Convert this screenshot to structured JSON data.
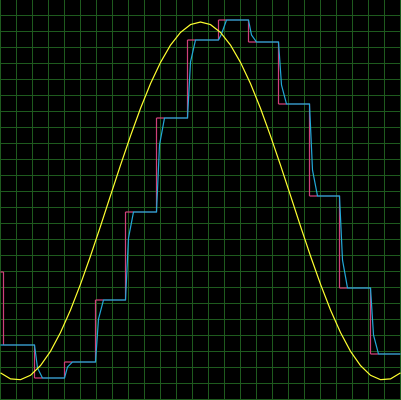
{
  "chart_data": {
    "type": "line",
    "background": "#000000",
    "grid": true,
    "grid_color": "#1e5a1e",
    "xlim": [
      0,
      400
    ],
    "ylim": [
      0,
      400
    ],
    "xticks": [
      0,
      16,
      32,
      48,
      64,
      80,
      96,
      112,
      128,
      144,
      160,
      176,
      192,
      208,
      224,
      240,
      256,
      272,
      288,
      304,
      320,
      336,
      352,
      368,
      384,
      400
    ],
    "yticks": [
      0,
      16,
      32,
      48,
      64,
      80,
      96,
      112,
      128,
      144,
      160,
      176,
      192,
      208,
      224,
      240,
      256,
      272,
      288,
      304,
      320,
      336,
      352,
      368,
      384,
      400
    ],
    "series": [
      {
        "style": "step",
        "color": "#d0407a",
        "x": [
          0,
          3,
          34,
          64,
          95,
          125,
          156,
          187,
          218,
          248,
          278,
          309,
          339,
          370
        ],
        "values": [
          128,
          55,
          22,
          38,
          100,
          188,
          282,
          360,
          380,
          358,
          296,
          204,
          112,
          46
        ]
      },
      {
        "style": "line",
        "color": "#22a8d8",
        "x": [
          0,
          34,
          37,
          42,
          64,
          67,
          72,
          95,
          98,
          103,
          125,
          128,
          133,
          156,
          159,
          164,
          187,
          190,
          195,
          218,
          221,
          226,
          248,
          251,
          256,
          278,
          281,
          286,
          309,
          312,
          317,
          339,
          342,
          347,
          370,
          373,
          378,
          400
        ],
        "values": [
          55,
          55,
          32,
          22,
          22,
          33,
          38,
          38,
          81,
          100,
          100,
          162,
          188,
          188,
          255,
          282,
          282,
          338,
          360,
          360,
          366,
          380,
          380,
          365,
          358,
          358,
          315,
          296,
          296,
          230,
          204,
          204,
          140,
          112,
          112,
          65,
          46,
          46
        ]
      },
      {
        "style": "line",
        "color": "#ffff30",
        "x": [
          0,
          10,
          20,
          30,
          40,
          50,
          60,
          70,
          80,
          90,
          100,
          110,
          120,
          130,
          140,
          150,
          160,
          170,
          180,
          190,
          200,
          210,
          220,
          230,
          240,
          250,
          260,
          270,
          280,
          290,
          300,
          310,
          320,
          330,
          340,
          350,
          360,
          370,
          380,
          390,
          400
        ],
        "values": [
          27.1,
          21.1,
          20.3,
          24.7,
          34.4,
          48.7,
          67.5,
          90.0,
          115.8,
          144.0,
          173.8,
          204.4,
          234.8,
          264.1,
          291.6,
          316.4,
          337.6,
          354.9,
          367.6,
          375.4,
          378,
          375.4,
          367.6,
          354.9,
          337.6,
          316.4,
          291.6,
          264.1,
          234.8,
          204.4,
          173.8,
          144.0,
          115.8,
          90.0,
          67.5,
          48.7,
          34.4,
          24.7,
          20.3,
          21.1,
          27.1
        ]
      }
    ]
  }
}
